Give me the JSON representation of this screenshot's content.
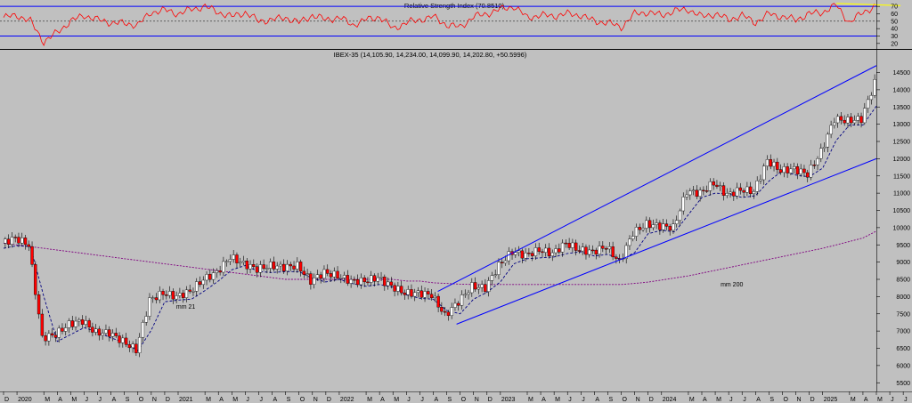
{
  "colors": {
    "background": "#c0c0c0",
    "up_candle": "#ffffff",
    "down_candle": "#ff0000",
    "channel": "#0000ff",
    "ma21": "#000080",
    "ma200": "#800080",
    "rsi_line": "#ff0000",
    "rsi_trend": "#ffff00"
  },
  "chart_data": [
    {
      "type": "line",
      "title": "Relative Strength Index (70.8510)",
      "y_ticks": [
        "70",
        "60",
        "50",
        "40",
        "30",
        "20"
      ],
      "ylim": [
        15,
        75
      ],
      "levels": [
        70,
        30
      ],
      "x": [
        "2019-12",
        "2020-01",
        "2020-02",
        "2020-03",
        "2020-04",
        "2020-05",
        "2020-06",
        "2020-07",
        "2020-08",
        "2020-09",
        "2020-10",
        "2020-11",
        "2020-12",
        "2021-01",
        "2021-02",
        "2021-03",
        "2021-04",
        "2021-05",
        "2021-06",
        "2021-07",
        "2021-08",
        "2021-09",
        "2021-10",
        "2021-11",
        "2021-12",
        "2022-01",
        "2022-02",
        "2022-03",
        "2022-04",
        "2022-05",
        "2022-06",
        "2022-07",
        "2022-08",
        "2022-09",
        "2022-10",
        "2022-11",
        "2022-12",
        "2023-01",
        "2023-02",
        "2023-03",
        "2023-04",
        "2023-05",
        "2023-06",
        "2023-07",
        "2023-08",
        "2023-09",
        "2023-10",
        "2023-11",
        "2023-12",
        "2024-01",
        "2024-02",
        "2024-03",
        "2024-04",
        "2024-05",
        "2024-06",
        "2024-07",
        "2024-08",
        "2024-09",
        "2024-10",
        "2024-11",
        "2024-12",
        "2025-01",
        "2025-02",
        "2025-03",
        "2025-04",
        "2025-05"
      ],
      "values": [
        55,
        58,
        50,
        22,
        35,
        50,
        58,
        52,
        48,
        47,
        45,
        62,
        65,
        60,
        66,
        70,
        62,
        56,
        62,
        50,
        52,
        55,
        48,
        58,
        52,
        55,
        45,
        52,
        56,
        40,
        48,
        52,
        56,
        45,
        42,
        56,
        60,
        66,
        70,
        55,
        58,
        57,
        60,
        58,
        50,
        48,
        42,
        60,
        62,
        58,
        64,
        66,
        56,
        60,
        52,
        58,
        48,
        60,
        56,
        52,
        60,
        62,
        72,
        48,
        62,
        71
      ]
    },
    {
      "type": "candlestick",
      "title": "IBEX-35 (14,105.90, 14,234.00, 14,099.90, 14,202.80, +50.5996)",
      "ohlc_last": {
        "open": 14105.9,
        "high": 14234.0,
        "low": 14099.9,
        "close": 14202.8,
        "change": 50.5996
      },
      "x": [
        "2019-12",
        "2020-01",
        "2020-02",
        "2020-03",
        "2020-04",
        "2020-05",
        "2020-06",
        "2020-07",
        "2020-08",
        "2020-09",
        "2020-10",
        "2020-11",
        "2020-12",
        "2021-01",
        "2021-02",
        "2021-03",
        "2021-04",
        "2021-05",
        "2021-06",
        "2021-07",
        "2021-08",
        "2021-09",
        "2021-10",
        "2021-11",
        "2021-12",
        "2022-01",
        "2022-02",
        "2022-03",
        "2022-04",
        "2022-05",
        "2022-06",
        "2022-07",
        "2022-08",
        "2022-09",
        "2022-10",
        "2022-11",
        "2022-12",
        "2023-01",
        "2023-02",
        "2023-03",
        "2023-04",
        "2023-05",
        "2023-06",
        "2023-07",
        "2023-08",
        "2023-09",
        "2023-10",
        "2023-11",
        "2023-12",
        "2024-01",
        "2024-02",
        "2024-03",
        "2024-04",
        "2024-05",
        "2024-06",
        "2024-07",
        "2024-08",
        "2024-09",
        "2024-10",
        "2024-11",
        "2024-12",
        "2025-01",
        "2025-02",
        "2025-03",
        "2025-04",
        "2025-05"
      ],
      "close": [
        9550,
        9700,
        9500,
        6800,
        6900,
        7200,
        7300,
        6950,
        6950,
        6700,
        6450,
        7900,
        8100,
        8000,
        8150,
        8500,
        8700,
        9150,
        8950,
        8800,
        8900,
        8850,
        8900,
        8450,
        8700,
        8600,
        8450,
        8450,
        8550,
        8300,
        8100,
        8100,
        8050,
        7450,
        7850,
        8300,
        8250,
        8900,
        9300,
        9200,
        9350,
        9250,
        9550,
        9350,
        9300,
        9450,
        9000,
        9850,
        10100,
        10050,
        10000,
        11050,
        11000,
        11300,
        10950,
        11100,
        11050,
        11950,
        11650,
        11700,
        11550,
        12200,
        13150,
        13100,
        13150,
        14203
      ],
      "y_ticks": [
        14500,
        14000,
        13500,
        13000,
        12500,
        12000,
        11500,
        11000,
        10500,
        10000,
        9500,
        9000,
        8500,
        8000,
        7500,
        7000,
        6500,
        6000,
        5500
      ],
      "ylim": [
        5300,
        14900
      ],
      "annotations": [
        "mm 21",
        "mm 200"
      ],
      "ma200": [
        9550,
        9500,
        9450,
        9400,
        9350,
        9300,
        9250,
        9200,
        9150,
        9100,
        9050,
        9000,
        8950,
        8900,
        8850,
        8800,
        8750,
        8700,
        8650,
        8600,
        8550,
        8500,
        8500,
        8500,
        8500,
        8500,
        8500,
        8500,
        8500,
        8500,
        8450,
        8450,
        8400,
        8380,
        8360,
        8350,
        8350,
        8350,
        8350,
        8350,
        8350,
        8350,
        8350,
        8350,
        8350,
        8350,
        8350,
        8380,
        8420,
        8480,
        8540,
        8600,
        8680,
        8760,
        8840,
        8920,
        9000,
        9080,
        9160,
        9240,
        9320,
        9400,
        9500,
        9600,
        9700,
        9900
      ],
      "x_ticks": [
        {
          "i": 0,
          "t": "D"
        },
        {
          "i": 1,
          "t": "2020"
        },
        {
          "i": 3,
          "t": "M"
        },
        {
          "i": 4,
          "t": "A"
        },
        {
          "i": 5,
          "t": "M"
        },
        {
          "i": 6,
          "t": "J"
        },
        {
          "i": 7,
          "t": "J"
        },
        {
          "i": 8,
          "t": "A"
        },
        {
          "i": 9,
          "t": "S"
        },
        {
          "i": 10,
          "t": "O"
        },
        {
          "i": 11,
          "t": "N"
        },
        {
          "i": 12,
          "t": "D"
        },
        {
          "i": 13,
          "t": "2021"
        },
        {
          "i": 15,
          "t": "M"
        },
        {
          "i": 16,
          "t": "A"
        },
        {
          "i": 17,
          "t": "M"
        },
        {
          "i": 18,
          "t": "J"
        },
        {
          "i": 19,
          "t": "J"
        },
        {
          "i": 20,
          "t": "A"
        },
        {
          "i": 21,
          "t": "S"
        },
        {
          "i": 22,
          "t": "O"
        },
        {
          "i": 23,
          "t": "N"
        },
        {
          "i": 24,
          "t": "D"
        },
        {
          "i": 25,
          "t": "2022"
        },
        {
          "i": 27,
          "t": "M"
        },
        {
          "i": 28,
          "t": "A"
        },
        {
          "i": 29,
          "t": "M"
        },
        {
          "i": 30,
          "t": "J"
        },
        {
          "i": 31,
          "t": "J"
        },
        {
          "i": 32,
          "t": "A"
        },
        {
          "i": 33,
          "t": "S"
        },
        {
          "i": 34,
          "t": "O"
        },
        {
          "i": 35,
          "t": "N"
        },
        {
          "i": 36,
          "t": "D"
        },
        {
          "i": 37,
          "t": "2023"
        },
        {
          "i": 39,
          "t": "M"
        },
        {
          "i": 40,
          "t": "A"
        },
        {
          "i": 41,
          "t": "M"
        },
        {
          "i": 42,
          "t": "J"
        },
        {
          "i": 43,
          "t": "J"
        },
        {
          "i": 44,
          "t": "A"
        },
        {
          "i": 45,
          "t": "S"
        },
        {
          "i": 46,
          "t": "O"
        },
        {
          "i": 47,
          "t": "N"
        },
        {
          "i": 48,
          "t": "D"
        },
        {
          "i": 49,
          "t": "2024"
        },
        {
          "i": 51,
          "t": "M"
        },
        {
          "i": 52,
          "t": "A"
        },
        {
          "i": 53,
          "t": "M"
        },
        {
          "i": 54,
          "t": "J"
        },
        {
          "i": 55,
          "t": "J"
        },
        {
          "i": 56,
          "t": "A"
        },
        {
          "i": 57,
          "t": "S"
        },
        {
          "i": 58,
          "t": "O"
        },
        {
          "i": 59,
          "t": "N"
        },
        {
          "i": 60,
          "t": "D"
        },
        {
          "i": 61,
          "t": "2025"
        },
        {
          "i": 63,
          "t": "M"
        },
        {
          "i": 64,
          "t": "A"
        },
        {
          "i": 65,
          "t": "M"
        },
        {
          "i": 66,
          "t": "J"
        },
        {
          "i": 67,
          "t": "J"
        }
      ]
    }
  ]
}
